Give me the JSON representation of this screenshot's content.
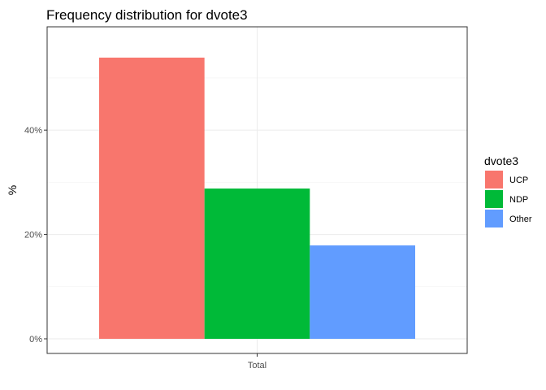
{
  "chart_data": {
    "type": "bar",
    "title": "Frequency distribution for dvote3",
    "xlabel": "",
    "ylabel": "%",
    "categories": [
      "Total"
    ],
    "series": [
      {
        "name": "UCP",
        "values": [
          53.9
        ],
        "color": "#F8766D"
      },
      {
        "name": "NDP",
        "values": [
          28.8
        ],
        "color": "#00BA38"
      },
      {
        "name": "Other",
        "values": [
          17.9
        ],
        "color": "#619CFF"
      }
    ],
    "ylim": [
      0,
      57
    ],
    "yticks": [
      0,
      20,
      40
    ],
    "ytick_labels": [
      "0%",
      "20%",
      "40%"
    ],
    "grid": true,
    "legend": {
      "title": "dvote3",
      "position": "right"
    }
  }
}
